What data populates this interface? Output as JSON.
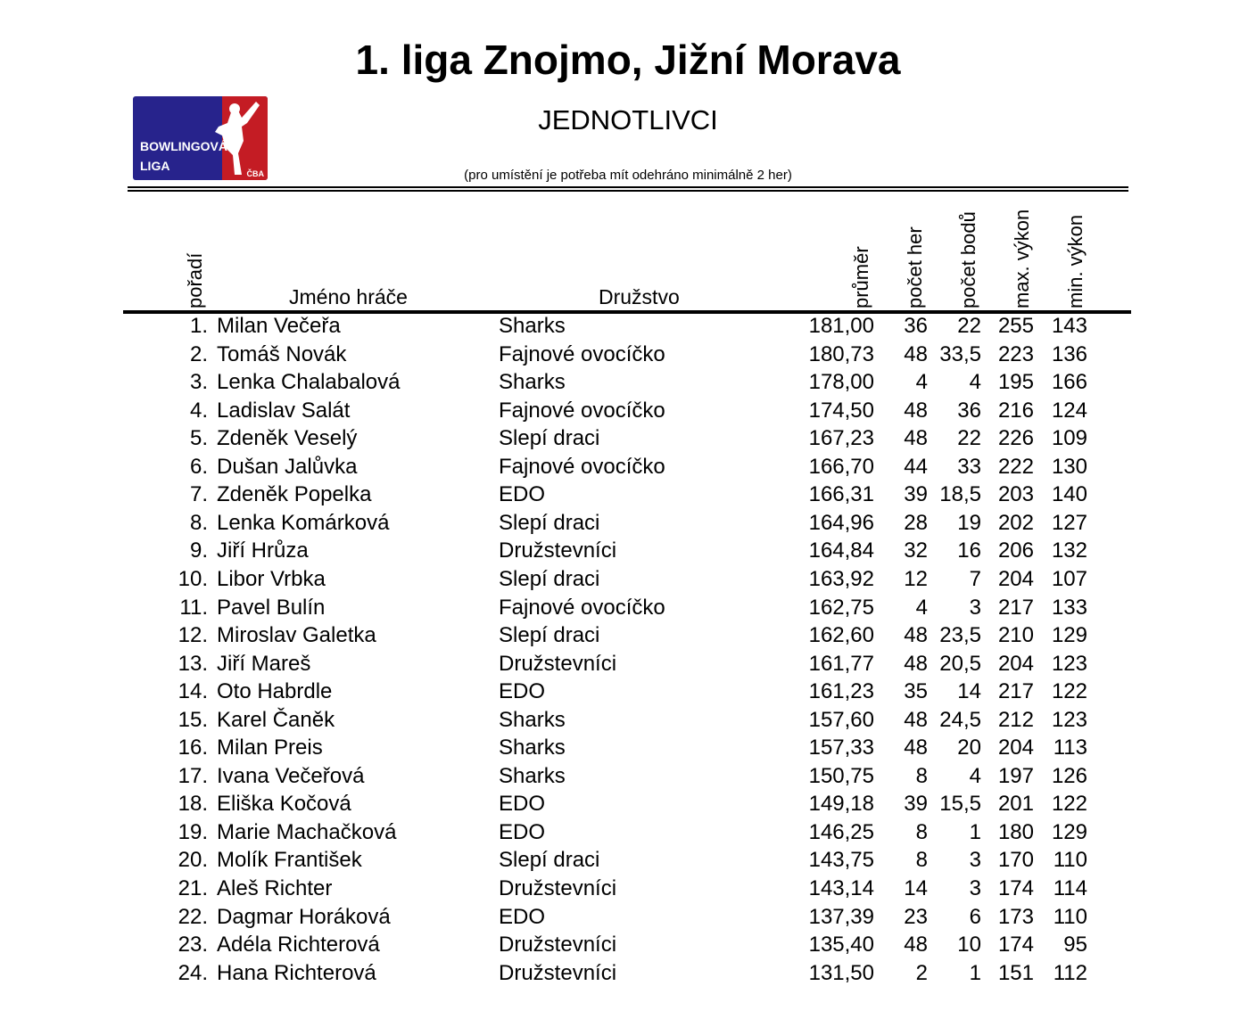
{
  "title": "1. liga Znojmo, Jižní Morava",
  "subtitle": "JEDNOTLIVCI",
  "note": "(pro umístění je potřeba mít odehráno minimálně 2 her)",
  "logo": {
    "line1": "BOWLINGOVÁ",
    "line2": "LIGA",
    "badge": "ČBA",
    "colors": {
      "blue": "#27238c",
      "red": "#c41c24"
    }
  },
  "columns": {
    "rank": "pořadí",
    "name": "Jméno hráče",
    "team": "Družstvo",
    "avg": "průměr",
    "games": "počet her",
    "points": "počet bodů",
    "max": "max. výkon",
    "min": "min. výkon"
  },
  "rows": [
    [
      "1.",
      "Milan Večeřa",
      "Sharks",
      "181,00",
      "36",
      "22",
      "255",
      "143"
    ],
    [
      "2.",
      "Tomáš Novák",
      "Fajnové ovocíčko",
      "180,73",
      "48",
      "33,5",
      "223",
      "136"
    ],
    [
      "3.",
      "Lenka Chalabalová",
      "Sharks",
      "178,00",
      "4",
      "4",
      "195",
      "166"
    ],
    [
      "4.",
      "Ladislav Salát",
      "Fajnové ovocíčko",
      "174,50",
      "48",
      "36",
      "216",
      "124"
    ],
    [
      "5.",
      "Zdeněk Veselý",
      "Slepí draci",
      "167,23",
      "48",
      "22",
      "226",
      "109"
    ],
    [
      "6.",
      "Dušan Jalůvka",
      "Fajnové ovocíčko",
      "166,70",
      "44",
      "33",
      "222",
      "130"
    ],
    [
      "7.",
      "Zdeněk Popelka",
      "EDO",
      "166,31",
      "39",
      "18,5",
      "203",
      "140"
    ],
    [
      "8.",
      "Lenka Komárková",
      "Slepí draci",
      "164,96",
      "28",
      "19",
      "202",
      "127"
    ],
    [
      "9.",
      "Jiří Hrůza",
      "Družstevníci",
      "164,84",
      "32",
      "16",
      "206",
      "132"
    ],
    [
      "10.",
      "Libor Vrbka",
      "Slepí draci",
      "163,92",
      "12",
      "7",
      "204",
      "107"
    ],
    [
      "11.",
      "Pavel Bulín",
      "Fajnové ovocíčko",
      "162,75",
      "4",
      "3",
      "217",
      "133"
    ],
    [
      "12.",
      "Miroslav Galetka",
      "Slepí draci",
      "162,60",
      "48",
      "23,5",
      "210",
      "129"
    ],
    [
      "13.",
      "Jiří Mareš",
      "Družstevníci",
      "161,77",
      "48",
      "20,5",
      "204",
      "123"
    ],
    [
      "14.",
      "Oto Habrdle",
      "EDO",
      "161,23",
      "35",
      "14",
      "217",
      "122"
    ],
    [
      "15.",
      "Karel Čaněk",
      "Sharks",
      "157,60",
      "48",
      "24,5",
      "212",
      "123"
    ],
    [
      "16.",
      "Milan Preis",
      "Sharks",
      "157,33",
      "48",
      "20",
      "204",
      "113"
    ],
    [
      "17.",
      "Ivana Večeřová",
      "Sharks",
      "150,75",
      "8",
      "4",
      "197",
      "126"
    ],
    [
      "18.",
      "Eliška Kočová",
      "EDO",
      "149,18",
      "39",
      "15,5",
      "201",
      "122"
    ],
    [
      "19.",
      "Marie Machačková",
      "EDO",
      "146,25",
      "8",
      "1",
      "180",
      "129"
    ],
    [
      "20.",
      "Molík František",
      "Slepí draci",
      "143,75",
      "8",
      "3",
      "170",
      "110"
    ],
    [
      "21.",
      "Aleš Richter",
      "Družstevníci",
      "143,14",
      "14",
      "3",
      "174",
      "114"
    ],
    [
      "22.",
      "Dagmar Horáková",
      "EDO",
      "137,39",
      "23",
      "6",
      "173",
      "110"
    ],
    [
      "23.",
      "Adéla Richterová",
      "Družstevníci",
      "135,40",
      "48",
      "10",
      "174",
      "95"
    ],
    [
      "24.",
      "Hana Richterová",
      "Družstevníci",
      "131,50",
      "2",
      "1",
      "151",
      "112"
    ]
  ]
}
